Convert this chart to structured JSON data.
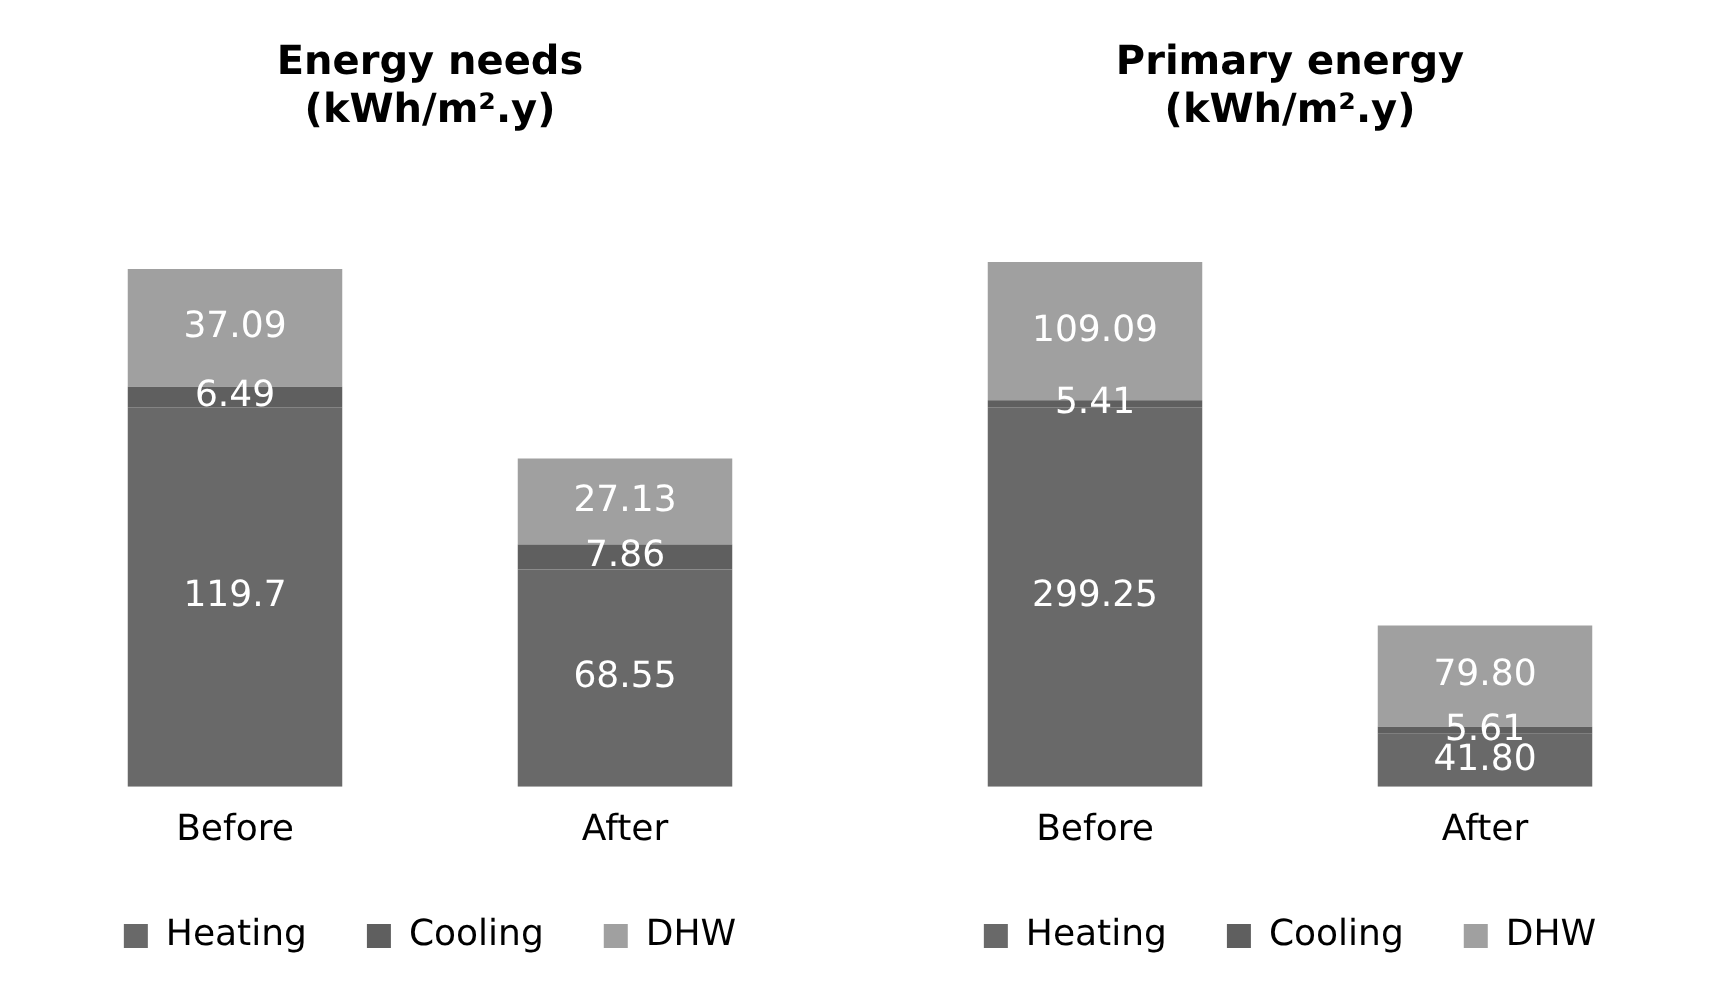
{
  "chart_data": [
    {
      "type": "bar",
      "title": [
        "Energy needs",
        "(kWh/m².y)"
      ],
      "categories": [
        "Before",
        "After"
      ],
      "stacked": true,
      "data_labels": true,
      "legend": "bottom",
      "grid": false,
      "tick_labels": "x",
      "series": [
        {
          "name": "Heating",
          "color": "#696969",
          "values": [
            119.7,
            68.55
          ]
        },
        {
          "name": "Cooling",
          "color": "#5f5f5f",
          "values": [
            6.49,
            7.86
          ]
        },
        {
          "name": "DHW",
          "color": "#a0a0a0",
          "values": [
            37.09,
            27.13
          ]
        }
      ]
    },
    {
      "type": "bar",
      "title": [
        "Primary energy",
        "(kWh/m².y)"
      ],
      "categories": [
        "Before",
        "After"
      ],
      "stacked": true,
      "legend": "bottom",
      "grid": false,
      "tick_labels": "x",
      "series": [
        {
          "name": "Heating",
          "color": "#696969",
          "values": [
            299.25,
            41.8
          ],
          "value_labels": [
            "299.25",
            "41.80"
          ]
        },
        {
          "name": "Cooling",
          "color": "#5f5f5f",
          "values": [
            5.41,
            5.61
          ],
          "value_labels": [
            "5.41",
            "5.61"
          ]
        },
        {
          "name": "DHW",
          "color": "#a0a0a0",
          "values": [
            109.09,
            79.8
          ],
          "value_labels": [
            "109.09",
            "79.80"
          ]
        }
      ]
    }
  ]
}
